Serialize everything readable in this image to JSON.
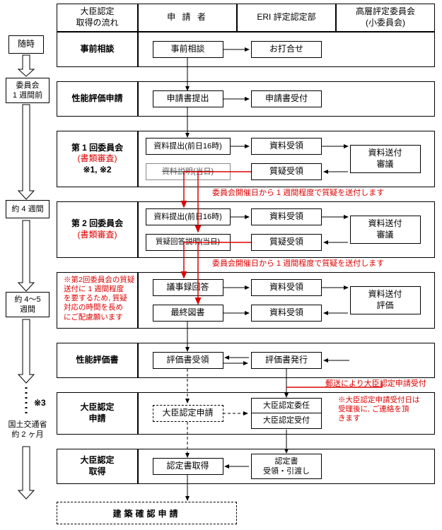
{
  "type": "flowchart",
  "colors": {
    "black": "#000000",
    "red": "#d00000",
    "bg": "#ffffff"
  },
  "col_headers": {
    "c1": "大臣認定\n取得の流れ",
    "c2": "申 請 者",
    "c3": "ERI 評定認定部",
    "c4": "高層評定委員会\n(小委員会)"
  },
  "leftcol": {
    "zuiji": "随時",
    "iinkai_pre": "委員会\n1 週間前",
    "w4": "約 4 週間",
    "w45": "約 4〜5\n週間",
    "ref3": "※3",
    "kokudo": "国土交通省\n約 2 ヶ月"
  },
  "row_labels": {
    "r1": "事前相談",
    "r2": "性能評価申請",
    "r3_main": "第 1 回委員会",
    "r3_sub1": "(書類審査)",
    "r3_sub2": "※1, ※2",
    "r4_main": "第 2 回委員会",
    "r4_sub1": "(書類審査)",
    "r6": "性能評価書",
    "r7": "大臣認定\n申請",
    "r8": "大臣認定\n取得",
    "r9": "建築確認申請"
  },
  "nodes": {
    "jizensoudan": "事前相談",
    "ouchiawase": "お打合せ",
    "shinseisho": "申請書提出",
    "shinseiuketsuke": "申請書受付",
    "shiryoteishutsu": "資料提出(前日16時)",
    "shiryosetsu": "資料説明(当日)",
    "shiryoujuryou": "資料受領",
    "shitsugi": "質疑受領",
    "shiryosoufu": "資料送付\n審議",
    "shiryoteishutsu2": "資料提出(前日16時)",
    "shitsugikaitousetsu": "質疑回答説明(当日)",
    "gijiroku": "議事録回答",
    "saishuzusho": "最終図書",
    "shiryosoufu_hyouka": "資料送付\n評価",
    "hyoukasho_juryou": "評価書受領",
    "hyoukasho_hakkou": "評価書発行",
    "daijin_shinsei": "大臣認定申請",
    "daijin_inin": "大臣認定委任",
    "daijin_uketsuke": "大臣認定受付",
    "nintei_shutoku": "認定書取得",
    "nintei_juryou": "認定書\n受領・引渡し"
  },
  "red_notes": {
    "note_shitsugi1": "委員会開催日から 1 週間程度で質疑を送付します",
    "note_shitsugi2": "委員会開催日から 1 週間程度で質疑を送付します",
    "note_longtime": "※第2回委員会の質疑\n送付に 1 週間程度\nを要するため, 質疑\n対応の時間を長め\nにご配慮願います",
    "note_yuusou": "郵送により大臣認定申請受付",
    "note_uketsukebi": "※大臣認定申請受付日は\n受理後に, ご連絡を頂\nきます"
  }
}
